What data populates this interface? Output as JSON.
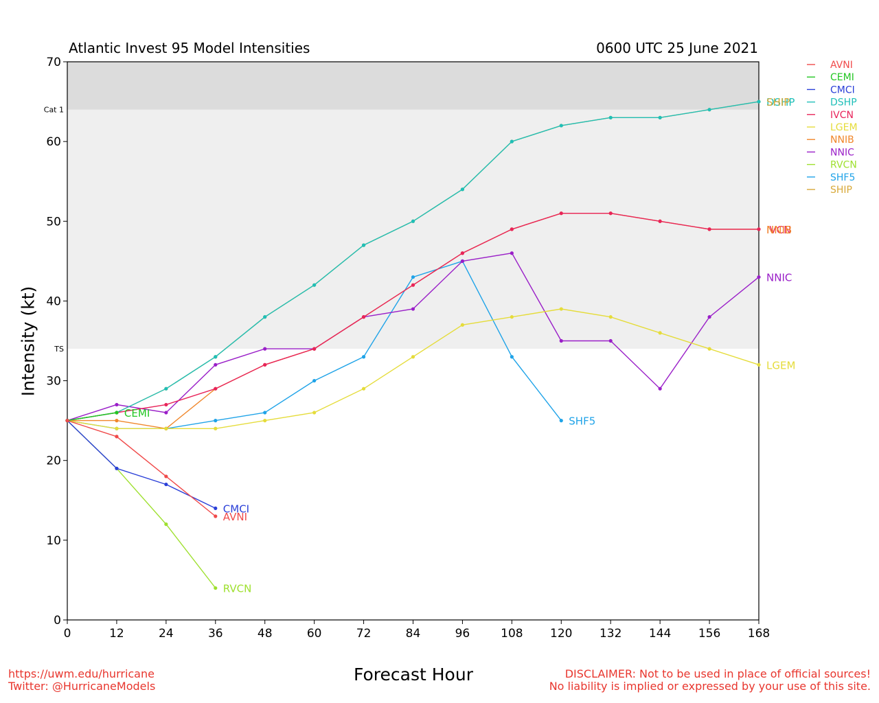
{
  "chart_data": {
    "type": "line",
    "title": "Atlantic Invest 95 Model Intensities",
    "subtitle": "0600 UTC 25 June 2021",
    "xlabel": "Forecast Hour",
    "ylabel": "Intensity (kt)",
    "xlim": [
      0,
      168
    ],
    "ylim": [
      0,
      70
    ],
    "xticks": [
      0,
      12,
      24,
      36,
      48,
      60,
      72,
      84,
      96,
      108,
      120,
      132,
      144,
      156,
      168
    ],
    "yticks": [
      0,
      10,
      20,
      30,
      40,
      50,
      60,
      70
    ],
    "bands": [
      {
        "label": "TS",
        "from": 34,
        "to": 64,
        "color": "#efefef"
      },
      {
        "label": "Cat 1",
        "from": 64,
        "to": 70,
        "color": "#dcdcdc"
      }
    ],
    "legend_position": "right, outside plot",
    "series": [
      {
        "name": "AVNI",
        "color": "#f04a4a",
        "x": [
          0,
          12,
          24,
          36
        ],
        "y": [
          25,
          23,
          18,
          13
        ]
      },
      {
        "name": "CEMI",
        "color": "#22c622",
        "x": [
          0,
          12
        ],
        "y": [
          25,
          26
        ]
      },
      {
        "name": "CMCI",
        "color": "#2a3fd8",
        "x": [
          0,
          12,
          24,
          36
        ],
        "y": [
          25,
          19,
          17,
          14
        ]
      },
      {
        "name": "DSHP",
        "color": "#1fbfb8",
        "x": [
          0,
          12,
          24,
          36,
          48,
          60,
          72,
          84,
          96,
          108,
          120,
          132,
          144,
          156,
          168
        ],
        "y": [
          25,
          26,
          29,
          33,
          38,
          42,
          47,
          50,
          54,
          60,
          62,
          63,
          63,
          64,
          65
        ]
      },
      {
        "name": "IVCN",
        "color": "#e8245a",
        "x": [
          0,
          12,
          24,
          36,
          48,
          60,
          72,
          84,
          96,
          108,
          120,
          132,
          144,
          156,
          168
        ],
        "y": [
          25,
          26,
          27,
          29,
          32,
          34,
          38,
          42,
          46,
          49,
          51,
          51,
          50,
          49,
          49
        ]
      },
      {
        "name": "LGEM",
        "color": "#e5dc3a",
        "x": [
          0,
          12,
          24,
          36,
          48,
          60,
          72,
          84,
          96,
          108,
          120,
          132,
          144,
          156,
          168
        ],
        "y": [
          25,
          24,
          24,
          24,
          25,
          26,
          29,
          33,
          37,
          38,
          39,
          38,
          36,
          34,
          32
        ]
      },
      {
        "name": "NNIB",
        "color": "#f0862a",
        "x": [
          0,
          12,
          24,
          36,
          48,
          60,
          72,
          84,
          96,
          108,
          120,
          132,
          144,
          156,
          168
        ],
        "y": [
          25,
          25,
          24,
          29,
          32,
          34,
          38,
          42,
          46,
          49,
          51,
          51,
          50,
          49,
          49
        ]
      },
      {
        "name": "NNIC",
        "color": "#9a1fc8",
        "x": [
          0,
          12,
          24,
          36,
          48,
          60,
          72,
          84,
          96,
          108,
          120,
          132,
          144,
          156,
          168
        ],
        "y": [
          25,
          27,
          26,
          32,
          34,
          34,
          38,
          39,
          45,
          46,
          35,
          35,
          29,
          38,
          43
        ]
      },
      {
        "name": "RVCN",
        "color": "#9ee02e",
        "x": [
          0,
          12,
          24,
          36
        ],
        "y": [
          25,
          19,
          12,
          4
        ]
      },
      {
        "name": "SHF5",
        "color": "#1fa3e8",
        "x": [
          0,
          12,
          24,
          36,
          48,
          60,
          72,
          84,
          96,
          108,
          120
        ],
        "y": [
          25,
          24,
          24,
          25,
          26,
          30,
          33,
          43,
          45,
          33,
          25
        ]
      },
      {
        "name": "SHIP",
        "color": "#d8a93a",
        "x": [
          0,
          12,
          24,
          36,
          48,
          60,
          72,
          84,
          96,
          108,
          120,
          132,
          144,
          156,
          168
        ],
        "y": [
          25,
          26,
          29,
          33,
          38,
          42,
          47,
          50,
          54,
          60,
          62,
          63,
          63,
          64,
          65
        ]
      }
    ],
    "end_labels": [
      {
        "series": "CEMI",
        "text": "CEMI"
      },
      {
        "series": "CMCI",
        "text": "CMCI"
      },
      {
        "series": "AVNI",
        "text": "AVNI"
      },
      {
        "series": "RVCN",
        "text": "RVCN"
      },
      {
        "series": "SHF5",
        "text": "SHF5"
      },
      {
        "series": "LGEM",
        "text": "LGEM"
      },
      {
        "series": "NNIC",
        "text": "NNIC"
      },
      {
        "series": "IVCN",
        "text": "IVCN"
      },
      {
        "series": "NNIB",
        "text": "NNIB"
      },
      {
        "series": "DSHP",
        "text": "DSHP"
      },
      {
        "series": "SHIP",
        "text": "SHIP"
      }
    ]
  },
  "footer": {
    "url": "https://uwm.edu/hurricane",
    "twitter": "Twitter: @HurricaneModels",
    "disclaimer_1": "DISCLAIMER: Not to be used in place of official sources!",
    "disclaimer_2": "No liability is implied or expressed by your use of this site."
  }
}
